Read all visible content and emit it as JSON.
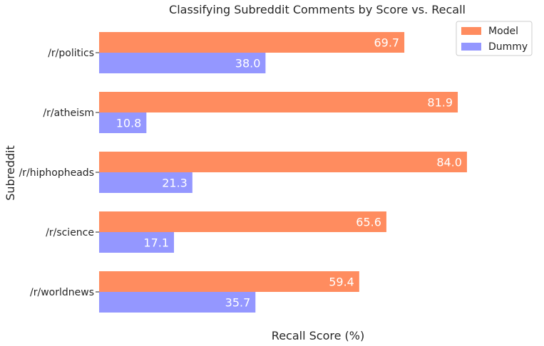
{
  "chart_data": {
    "type": "bar",
    "orientation": "horizontal",
    "title": "Classifying Subreddit Comments by Score vs. Recall",
    "xlabel": "Recall Score (%)",
    "ylabel": "Subreddit",
    "categories": [
      "/r/politics",
      "/r/atheism",
      "/r/hiphopheads",
      "/r/science",
      "/r/worldnews"
    ],
    "series": [
      {
        "name": "Model",
        "color": "#ff8c5f",
        "values": [
          69.7,
          81.9,
          84.0,
          65.6,
          59.4
        ]
      },
      {
        "name": "Dummy",
        "color": "#9497ff",
        "values": [
          38.0,
          10.8,
          21.3,
          17.1,
          35.7
        ]
      }
    ],
    "value_labels": true,
    "xlim": [
      0,
      85.8
    ],
    "x_tick_labels_shown": false,
    "legend_position": "top-right",
    "grid": false
  }
}
